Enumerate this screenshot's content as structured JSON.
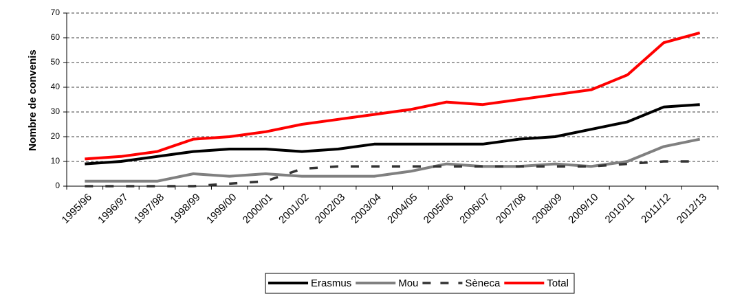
{
  "chart_data": {
    "type": "line",
    "y_label": "Nombre de convenis",
    "categories": [
      "1995/96",
      "1996/97",
      "1997/98",
      "1998/99",
      "1999/00",
      "2000/01",
      "2001/02",
      "2002/03",
      "2003/04",
      "2004/05",
      "2005/06",
      "2006/07",
      "2007/08",
      "2008/09",
      "2009/10",
      "2010/11",
      "2011/12",
      "2012/13"
    ],
    "series": [
      {
        "name": "Erasmus",
        "color": "#000000",
        "dashed": false,
        "values": [
          9,
          10,
          12,
          14,
          15,
          15,
          14,
          15,
          17,
          17,
          17,
          17,
          19,
          20,
          23,
          26,
          32,
          33
        ]
      },
      {
        "name": "Mou",
        "color": "#808080",
        "dashed": false,
        "values": [
          2,
          2,
          2,
          5,
          4,
          5,
          4,
          4,
          4,
          6,
          9,
          8,
          8,
          9,
          8,
          10,
          16,
          19
        ]
      },
      {
        "name": "Sèneca",
        "color": "#333333",
        "dashed": true,
        "values": [
          0,
          0,
          0,
          0,
          1,
          2,
          7,
          8,
          8,
          8,
          8,
          8,
          8,
          8,
          8,
          9,
          10,
          10
        ]
      },
      {
        "name": "Total",
        "color": "#ff0000",
        "dashed": false,
        "values": [
          11,
          12,
          14,
          19,
          20,
          22,
          25,
          27,
          29,
          31,
          34,
          33,
          35,
          37,
          39,
          45,
          58,
          62
        ]
      }
    ],
    "ylim": [
      0,
      70
    ],
    "yticks": [
      0,
      10,
      20,
      30,
      40,
      50,
      60,
      70
    ],
    "grid": true,
    "legend": "bottom"
  }
}
